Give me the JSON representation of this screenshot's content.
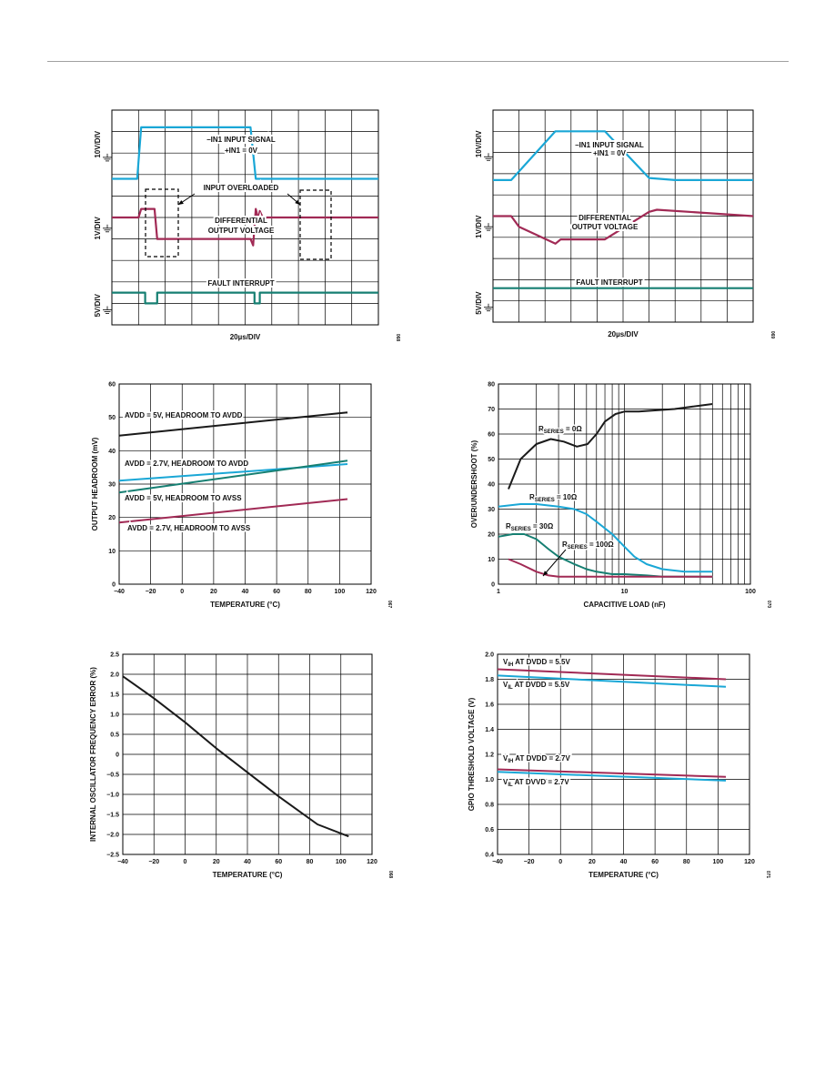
{
  "colors": {
    "black": "#1a1a1a",
    "cyan": "#1aa7d6",
    "maroon": "#a12a55",
    "teal": "#167f72",
    "grid": "#000000"
  },
  "chart_data": [
    {
      "id": "scope_fault",
      "type": "line",
      "title": "",
      "xlabel": "20µs/DIV",
      "grid": true,
      "channels": [
        "10V/DIV",
        "1V/DIV",
        "5V/DIV"
      ],
      "annotations": [
        "–IN1 INPUT SIGNAL",
        "+IN1 = 0V",
        "INPUT OVERLOADED",
        "DIFFERENTIAL",
        "OUTPUT VOLTAGE",
        "FAULT INTERRUPT"
      ],
      "series": [
        {
          "color": "cyan",
          "x": [
            0,
            0.95,
            1.1,
            5.2,
            5.4,
            10
          ],
          "y": [
            -3.2,
            -3.2,
            -0.8,
            -0.8,
            -3.2,
            -3.2
          ]
        },
        {
          "color": "maroon",
          "x": [
            0,
            1.0,
            1.1,
            1.6,
            1.7,
            5.2,
            5.3,
            5.4,
            5.5,
            5.55,
            5.7,
            5.8,
            6.0,
            10
          ],
          "y": [
            -5.0,
            -5.0,
            -4.6,
            -4.6,
            -6.0,
            -6.0,
            -6.3,
            -4.6,
            -5.1,
            -4.7,
            -5.1,
            -5.0,
            -5.0,
            -5.0
          ]
        },
        {
          "color": "teal",
          "x": [
            0,
            1.25,
            1.25,
            1.7,
            1.7,
            5.35,
            5.35,
            5.55,
            5.55,
            10
          ],
          "y": [
            -8.5,
            -8.5,
            -9.0,
            -9.0,
            -8.5,
            -8.5,
            -9.0,
            -9.0,
            -8.5,
            -8.5
          ]
        }
      ],
      "code": "068"
    },
    {
      "id": "scope_ramp",
      "type": "line",
      "title": "",
      "xlabel": "20µs/DIV",
      "grid": true,
      "channels": [
        "10V/DIV",
        "1V/DIV",
        "5V/DIV"
      ],
      "annotations": [
        "–IN1 INPUT SIGNAL",
        "+IN1 = 0V",
        "DIFFERENTIAL",
        "OUTPUT VOLTAGE",
        "FAULT INTERRUPT"
      ],
      "series": [
        {
          "color": "cyan",
          "x": [
            0,
            0.7,
            2.4,
            4.3,
            6.0,
            7.0,
            10
          ],
          "y": [
            -3.3,
            -3.3,
            -1.0,
            -1.0,
            -3.2,
            -3.3,
            -3.3
          ]
        },
        {
          "color": "maroon",
          "x": [
            0,
            0.7,
            1.0,
            2.4,
            2.6,
            4.3,
            6.0,
            6.3,
            10
          ],
          "y": [
            -5.0,
            -5.0,
            -5.5,
            -6.3,
            -6.1,
            -6.1,
            -4.8,
            -4.7,
            -5.0
          ]
        },
        {
          "color": "teal",
          "x": [
            0,
            10
          ],
          "y": [
            -8.4,
            -8.4
          ]
        }
      ],
      "code": "069"
    },
    {
      "id": "headroom",
      "type": "line",
      "title": "",
      "xlabel": "TEMPERATURE (°C)",
      "ylabel": "OUTPUT HEADROOM (mV)",
      "xlim": [
        -40,
        120
      ],
      "ylim": [
        0,
        60
      ],
      "xticks": [
        "−40",
        "−20",
        "0",
        "20",
        "40",
        "60",
        "80",
        "100",
        "120"
      ],
      "yticks": [
        "0",
        "10",
        "20",
        "30",
        "40",
        "50",
        "60"
      ],
      "grid": true,
      "series": [
        {
          "name": "AVDD = 5V, HEADROOM TO AVDD",
          "color": "black",
          "x": [
            -40,
            105
          ],
          "y": [
            44.5,
            51.5
          ]
        },
        {
          "name": "AVDD = 2.7V, HEADROOM TO AVDD",
          "color": "cyan",
          "x": [
            -40,
            105
          ],
          "y": [
            31.0,
            36.0
          ]
        },
        {
          "name": "AVDD = 5V, HEADROOM TO AVSS",
          "color": "teal",
          "x": [
            -40,
            105
          ],
          "y": [
            27.5,
            37.0
          ]
        },
        {
          "name": "AVDD = 2.7V, HEADROOM TO AVSS",
          "color": "maroon",
          "x": [
            -40,
            105
          ],
          "y": [
            18.5,
            25.5
          ]
        }
      ],
      "code": "067"
    },
    {
      "id": "overshoot",
      "type": "line",
      "title": "",
      "xlabel": "CAPACITIVE LOAD (nF)",
      "ylabel": "OVER/UNDERSHOOT (%)",
      "xscale": "log",
      "xlim": [
        1,
        100
      ],
      "ylim": [
        0,
        80
      ],
      "xticks": [
        "1",
        "10",
        "100"
      ],
      "yticks": [
        "0",
        "10",
        "20",
        "30",
        "40",
        "50",
        "60",
        "70",
        "80"
      ],
      "grid": true,
      "series_labels": [
        {
          "main": "R",
          "sub": "SERIES",
          "rest": " = 0Ω"
        },
        {
          "main": "R",
          "sub": "SERIES",
          "rest": " = 10Ω"
        },
        {
          "main": "R",
          "sub": "SERIES",
          "rest": " = 30Ω"
        },
        {
          "main": "R",
          "sub": "SERIES",
          "rest": " = 100Ω"
        }
      ],
      "series": [
        {
          "color": "black",
          "x": [
            1.2,
            1.5,
            2,
            2.6,
            3.3,
            4.2,
            5.1,
            6,
            7,
            8.5,
            10,
            13,
            18,
            25,
            35,
            50
          ],
          "y": [
            38,
            50,
            56,
            58,
            57,
            55,
            56,
            60,
            65,
            68,
            69,
            69,
            69.5,
            70,
            71,
            72
          ]
        },
        {
          "color": "cyan",
          "x": [
            1,
            1.5,
            2,
            3,
            4,
            5,
            6,
            8,
            10,
            12,
            15,
            20,
            30,
            50
          ],
          "y": [
            31,
            32,
            32,
            31,
            30,
            28,
            25,
            20,
            15,
            11,
            8,
            6,
            5,
            5
          ]
        },
        {
          "color": "teal",
          "x": [
            1,
            1.3,
            1.6,
            2,
            2.5,
            3,
            4,
            5,
            6,
            8,
            10,
            15,
            20,
            50
          ],
          "y": [
            19,
            20,
            20,
            18,
            14,
            11,
            8,
            6,
            5,
            4,
            4,
            3.5,
            3,
            3
          ]
        },
        {
          "color": "maroon",
          "x": [
            1.2,
            1.5,
            2,
            2.5,
            3,
            4,
            5,
            7,
            10,
            20,
            50
          ],
          "y": [
            10,
            8,
            5,
            3.5,
            3,
            3,
            3,
            3,
            3,
            3,
            3
          ]
        }
      ],
      "code": "070"
    },
    {
      "id": "oscillator",
      "type": "line",
      "title": "",
      "xlabel": "TEMPERATURE (°C)",
      "ylabel": "INTERNAL OSCILLATOR FREQUENCY ERROR (%)",
      "xlim": [
        -40,
        120
      ],
      "ylim": [
        -2.5,
        2.5
      ],
      "xticks": [
        "−40",
        "−20",
        "0",
        "20",
        "40",
        "60",
        "80",
        "100",
        "120"
      ],
      "yticks": [
        "−2.5",
        "−2.0",
        "−1.5",
        "−1.0",
        "−0.5",
        "0",
        "0.5",
        "1.0",
        "1.5",
        "2.0",
        "2.5"
      ],
      "grid": true,
      "series": [
        {
          "color": "black",
          "x": [
            -40,
            -20,
            0,
            20,
            40,
            60,
            85,
            105
          ],
          "y": [
            1.95,
            1.4,
            0.8,
            0.15,
            -0.45,
            -1.05,
            -1.75,
            -2.05
          ]
        }
      ],
      "code": "068"
    },
    {
      "id": "gpio",
      "type": "line",
      "title": "",
      "xlabel": "TEMPERATURE (°C)",
      "ylabel": "GPIO THRESHOLD VOLTAGE (V)",
      "xlim": [
        -40,
        120
      ],
      "ylim": [
        0.4,
        2.0
      ],
      "xticks": [
        "−40",
        "−20",
        "0",
        "20",
        "40",
        "60",
        "80",
        "100",
        "120"
      ],
      "yticks": [
        "0.4",
        "0.6",
        "0.8",
        "1.0",
        "1.2",
        "1.4",
        "1.6",
        "1.8",
        "2.0"
      ],
      "grid": true,
      "series_labels": [
        {
          "main": "V",
          "sub": "IH",
          "rest": " AT DVDD = 5.5V"
        },
        {
          "main": "V",
          "sub": "IL",
          "rest": " AT DVDD = 5.5V"
        },
        {
          "main": "V",
          "sub": "IH",
          "rest": " AT DVDD = 2.7V"
        },
        {
          "main": "V",
          "sub": "IL",
          "rest": " AT DVVD = 2.7V"
        }
      ],
      "series": [
        {
          "color": "maroon",
          "x": [
            -40,
            105
          ],
          "y": [
            1.88,
            1.8
          ]
        },
        {
          "color": "cyan",
          "x": [
            -40,
            105
          ],
          "y": [
            1.83,
            1.74
          ]
        },
        {
          "color": "maroon",
          "x": [
            -40,
            105
          ],
          "y": [
            1.08,
            1.02
          ]
        },
        {
          "color": "cyan",
          "x": [
            -40,
            105
          ],
          "y": [
            1.06,
            0.99
          ]
        }
      ],
      "code": "071"
    }
  ]
}
